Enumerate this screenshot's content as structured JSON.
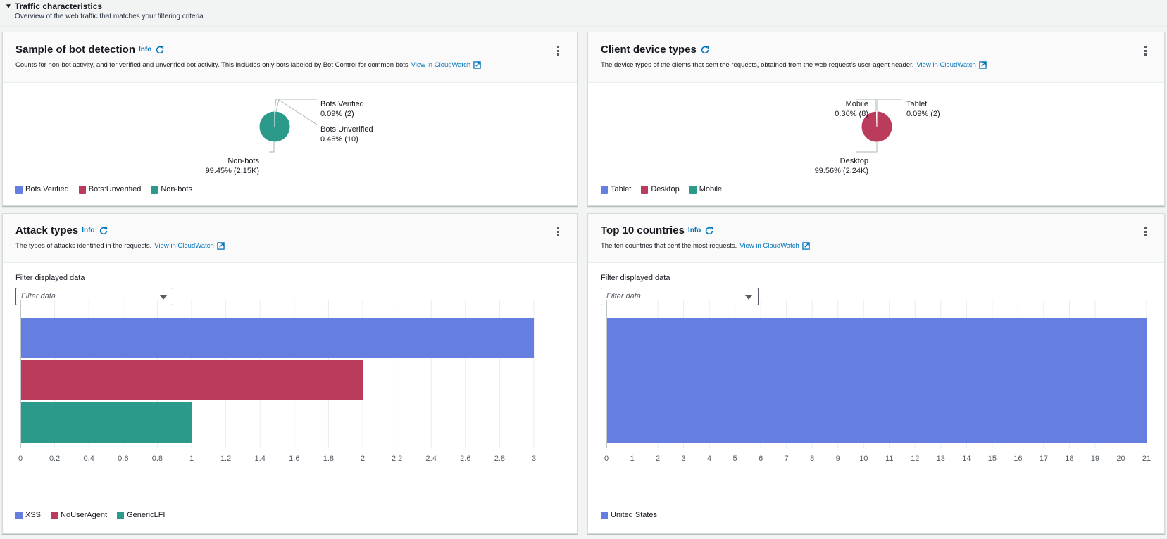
{
  "section": {
    "toggle_icon": "caret-down-icon",
    "title": "Traffic characteristics",
    "description": "Overview of the web traffic that matches your filtering criteria."
  },
  "colors": {
    "blue": "#657ee0",
    "red": "#ba3b5c",
    "teal": "#2b9a8b",
    "link": "#0073bb"
  },
  "panels": {
    "bot_detection": {
      "title": "Sample of bot detection",
      "info": "Info",
      "description": "Counts for non-bot activity, and for verified and unverified bot activity. This includes only bots labeled by Bot Control for common bots",
      "link": "View in CloudWatch",
      "labels": [
        {
          "name": "Bots:Verified",
          "value": "0.09% (2)"
        },
        {
          "name": "Bots:Unverified",
          "value": "0.46% (10)"
        },
        {
          "name": "Non-bots",
          "value": "99.45% (2.15K)"
        }
      ],
      "legend": [
        "Bots:Verified",
        "Bots:Unverified",
        "Non-bots"
      ]
    },
    "device_types": {
      "title": "Client device types",
      "description": "The device types of the clients that sent the requests, obtained from the web request's user-agent header.",
      "link": "View in CloudWatch",
      "labels": [
        {
          "name": "Mobile",
          "value": "0.36% (8)"
        },
        {
          "name": "Tablet",
          "value": "0.09% (2)"
        },
        {
          "name": "Desktop",
          "value": "99.56% (2.24K)"
        }
      ],
      "legend": [
        "Tablet",
        "Desktop",
        "Mobile"
      ]
    },
    "attack_types": {
      "title": "Attack types",
      "info": "Info",
      "description": "The types of attacks identified in the requests.",
      "link": "View in CloudWatch",
      "filter_label": "Filter displayed data",
      "filter_placeholder": "Filter data",
      "legend": [
        "XSS",
        "NoUserAgent",
        "GenericLFI"
      ]
    },
    "top_countries": {
      "title": "Top 10 countries",
      "info": "Info",
      "description": "The ten countries that sent the most requests.",
      "link": "View in CloudWatch",
      "filter_label": "Filter displayed data",
      "filter_placeholder": "Filter data",
      "legend": [
        "United States"
      ]
    }
  },
  "chart_data": [
    {
      "id": "bot_detection",
      "type": "pie",
      "title": "Sample of bot detection",
      "slices": [
        {
          "label": "Bots:Verified",
          "percent": 0.09,
          "count": 2,
          "color": "#657ee0"
        },
        {
          "label": "Bots:Unverified",
          "percent": 0.46,
          "count": 10,
          "color": "#ba3b5c"
        },
        {
          "label": "Non-bots",
          "percent": 99.45,
          "count": 2150,
          "color": "#2b9a8b"
        }
      ],
      "legend_position": "bottom-left"
    },
    {
      "id": "device_types",
      "type": "pie",
      "title": "Client device types",
      "slices": [
        {
          "label": "Tablet",
          "percent": 0.09,
          "count": 2,
          "color": "#657ee0"
        },
        {
          "label": "Desktop",
          "percent": 99.56,
          "count": 2240,
          "color": "#ba3b5c"
        },
        {
          "label": "Mobile",
          "percent": 0.36,
          "count": 8,
          "color": "#2b9a8b"
        }
      ],
      "legend_position": "bottom-left"
    },
    {
      "id": "attack_types",
      "type": "bar",
      "orientation": "horizontal",
      "title": "Attack types",
      "categories": [
        "XSS",
        "NoUserAgent",
        "GenericLFI"
      ],
      "values": [
        3,
        2,
        1
      ],
      "colors": [
        "#657ee0",
        "#ba3b5c",
        "#2b9a8b"
      ],
      "xlim": [
        0,
        3
      ],
      "xticks": [
        0,
        0.2,
        0.4,
        0.6,
        0.8,
        1,
        1.2,
        1.4,
        1.6,
        1.8,
        2,
        2.2,
        2.4,
        2.6,
        2.8,
        3
      ],
      "grid": true,
      "legend_position": "bottom-left"
    },
    {
      "id": "top_countries",
      "type": "bar",
      "orientation": "horizontal",
      "title": "Top 10 countries",
      "categories": [
        "United States"
      ],
      "values": [
        21
      ],
      "colors": [
        "#657ee0"
      ],
      "xlim": [
        0,
        21
      ],
      "xticks": [
        0,
        1,
        2,
        3,
        4,
        5,
        6,
        7,
        8,
        9,
        10,
        11,
        12,
        13,
        14,
        15,
        16,
        17,
        18,
        19,
        20,
        21
      ],
      "grid": true,
      "legend_position": "bottom-left"
    }
  ]
}
